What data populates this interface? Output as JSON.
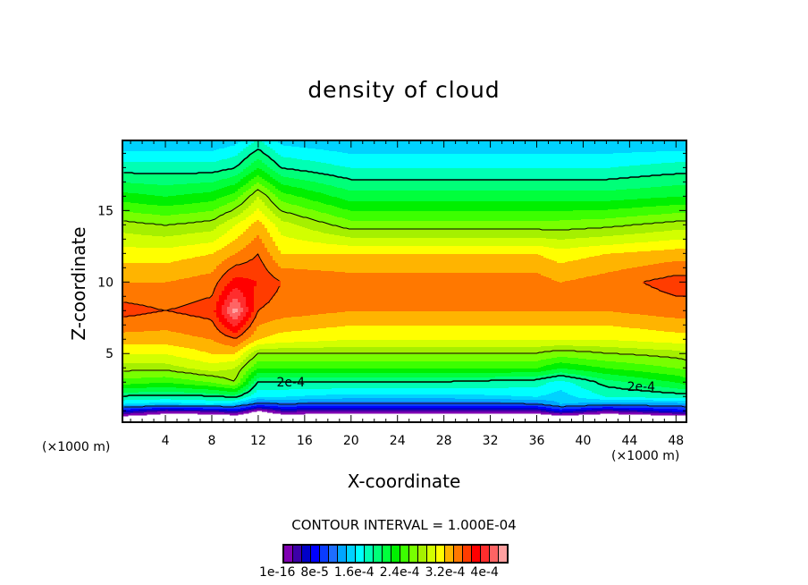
{
  "chart_data": {
    "type": "heatmap",
    "subtype": "filled-contour",
    "title": "density of cloud",
    "xlabel": "X-coordinate",
    "ylabel": "Z-coordinate",
    "x_unit_left": "(×1000 m)",
    "x_unit_right": "(×1000 m)",
    "xlim": [
      0.3,
      48.9
    ],
    "ylim": [
      0.2,
      19.9
    ],
    "x_ticks": [
      4,
      8,
      12,
      16,
      20,
      24,
      28,
      32,
      36,
      40,
      44,
      48
    ],
    "y_ticks": [
      5,
      10,
      15
    ],
    "value_scale": 0.0001,
    "level_step": 0.2,
    "contour_levels": [
      1,
      2,
      3,
      4
    ],
    "contour_labels": [
      {
        "text": "2e-4",
        "x": 14.8,
        "z": 3.0
      },
      {
        "text": "2e-4",
        "x": 45.0,
        "z": 2.7
      }
    ],
    "contour_interval_text": "CONTOUR INTERVAL = 1.000E-04",
    "colorbar_labels": [
      "1e-16",
      "8e-5",
      "1.6e-4",
      "2.4e-4",
      "3.2e-4",
      "4e-4"
    ],
    "colors": [
      "#7f00b2",
      "#3c00a8",
      "#0000c8",
      "#0000ff",
      "#0a3cff",
      "#1e6eff",
      "#00a5ff",
      "#00d2ff",
      "#00ffff",
      "#00ffb4",
      "#00ff78",
      "#00ff3c",
      "#00f000",
      "#3cff00",
      "#78ff00",
      "#a5f000",
      "#d2ff00",
      "#ffff00",
      "#ffb400",
      "#ff7800",
      "#ff3c00",
      "#ff0000",
      "#ff2d2d",
      "#ff6464",
      "#ffa0a0"
    ],
    "grid_x": [
      0,
      4,
      8,
      10,
      12,
      14,
      20,
      28,
      36,
      38,
      42,
      48,
      50
    ],
    "grid_z": [
      0.5,
      1,
      1.5,
      2,
      3,
      4,
      5,
      6,
      8,
      10,
      12,
      14,
      16,
      18,
      20
    ],
    "values_by_x": [
      [
        -0.3,
        0.6,
        1.6,
        2.0,
        2.7,
        3.1,
        3.4,
        3.7,
        4.1,
        3.8,
        3.5,
        3.1,
        2.5,
        1.9,
        1.4
      ],
      [
        -0.5,
        0.2,
        1.5,
        1.95,
        2.6,
        3.1,
        3.4,
        3.7,
        4.0,
        3.8,
        3.5,
        3.0,
        2.4,
        1.9,
        1.4
      ],
      [
        -0.5,
        0.3,
        1.6,
        2.0,
        2.8,
        3.3,
        3.6,
        3.8,
        4.1,
        3.9,
        3.6,
        3.1,
        2.5,
        1.9,
        1.4
      ],
      [
        -0.5,
        0.5,
        1.5,
        2.1,
        3.0,
        3.2,
        3.6,
        4.0,
        4.9,
        4.3,
        3.8,
        3.4,
        2.7,
        2.0,
        1.5
      ],
      [
        -0.5,
        -0.1,
        1.0,
        1.6,
        2.0,
        2.6,
        3.0,
        3.6,
        4.0,
        4.2,
        4.0,
        3.7,
        3.2,
        2.4,
        1.8
      ],
      [
        -0.5,
        0.3,
        1.1,
        1.6,
        2.0,
        2.6,
        3.0,
        3.5,
        3.9,
        4.0,
        3.6,
        3.3,
        2.7,
        2.0,
        1.5
      ],
      [
        -0.5,
        0.2,
        1.0,
        1.5,
        2.0,
        2.6,
        3.0,
        3.4,
        3.8,
        3.9,
        3.6,
        2.9,
        2.3,
        1.8,
        1.4
      ],
      [
        -0.5,
        0.2,
        1.0,
        1.5,
        2.0,
        2.6,
        3.0,
        3.4,
        3.8,
        3.9,
        3.6,
        2.9,
        2.3,
        1.8,
        1.4
      ],
      [
        -0.5,
        0.2,
        1.1,
        1.6,
        1.9,
        2.6,
        3.0,
        3.4,
        3.8,
        3.9,
        3.6,
        2.9,
        2.3,
        1.8,
        1.4
      ],
      [
        -0.5,
        0.6,
        1.4,
        1.5,
        1.7,
        2.4,
        2.9,
        3.4,
        3.8,
        3.8,
        3.5,
        2.9,
        2.3,
        1.8,
        1.4
      ],
      [
        -0.5,
        0.2,
        1.3,
        1.8,
        2.1,
        2.6,
        3.0,
        3.4,
        3.8,
        3.9,
        3.6,
        2.95,
        2.3,
        1.8,
        1.4
      ],
      [
        -0.5,
        0.6,
        1.3,
        1.9,
        2.4,
        2.8,
        3.1,
        3.5,
        3.9,
        4.1,
        3.7,
        3.1,
        2.4,
        1.9,
        1.4
      ],
      [
        -0.3,
        0.6,
        1.5,
        1.9,
        2.6,
        2.9,
        3.2,
        3.5,
        3.9,
        4.1,
        3.7,
        3.1,
        2.4,
        1.9,
        1.4
      ]
    ]
  }
}
